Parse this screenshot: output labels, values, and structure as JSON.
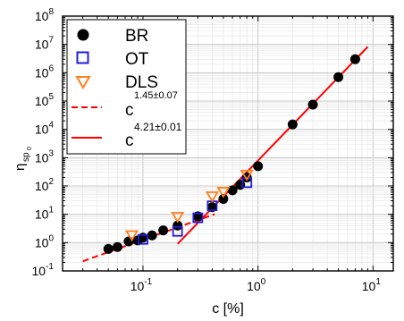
{
  "chart_data": {
    "type": "scatter",
    "x_scale": "log",
    "y_scale": "log",
    "xlim": [
      0.02,
      15
    ],
    "ylim": [
      0.1,
      100000000
    ],
    "xlabel": "c [%]",
    "ylabel_main": "η",
    "ylabel_sub": "sp",
    "ylabel_subsub": "0",
    "grid": true,
    "legend_position": "top-left",
    "x_ticks": [
      {
        "value": 0.1,
        "base": "10",
        "exp": "-1"
      },
      {
        "value": 1,
        "base": "10",
        "exp": "0"
      },
      {
        "value": 10,
        "base": "10",
        "exp": "1"
      }
    ],
    "y_ticks": [
      {
        "value": 0.1,
        "base": "10",
        "exp": "-1"
      },
      {
        "value": 1,
        "base": "10",
        "exp": "0"
      },
      {
        "value": 10,
        "base": "10",
        "exp": "1"
      },
      {
        "value": 100,
        "base": "10",
        "exp": "2"
      },
      {
        "value": 1000,
        "base": "10",
        "exp": "3"
      },
      {
        "value": 10000,
        "base": "10",
        "exp": "4"
      },
      {
        "value": 100000,
        "base": "10",
        "exp": "5"
      },
      {
        "value": 1000000,
        "base": "10",
        "exp": "6"
      },
      {
        "value": 10000000,
        "base": "10",
        "exp": "7"
      },
      {
        "value": 100000000,
        "base": "10",
        "exp": "8"
      }
    ],
    "series": [
      {
        "name": "BR",
        "marker": "filled-circle",
        "color": "#000000",
        "points": [
          [
            0.05,
            0.6
          ],
          [
            0.06,
            0.7
          ],
          [
            0.075,
            1.1
          ],
          [
            0.09,
            1.2
          ],
          [
            0.1,
            1.5
          ],
          [
            0.12,
            1.8
          ],
          [
            0.15,
            2.7
          ],
          [
            0.2,
            4.0
          ],
          [
            0.3,
            8.5
          ],
          [
            0.4,
            18
          ],
          [
            0.5,
            35
          ],
          [
            0.6,
            70
          ],
          [
            0.7,
            110
          ],
          [
            0.8,
            200
          ],
          [
            1.0,
            500
          ],
          [
            2.0,
            15000
          ],
          [
            3.0,
            75000
          ],
          [
            5.0,
            700000
          ],
          [
            7.0,
            3000000
          ]
        ]
      },
      {
        "name": "OT",
        "marker": "open-square",
        "color": "#1f1fdc",
        "points": [
          [
            0.1,
            1.3
          ],
          [
            0.2,
            2.5
          ],
          [
            0.3,
            7.5
          ],
          [
            0.4,
            20
          ],
          [
            0.8,
            130
          ]
        ]
      },
      {
        "name": "DLS",
        "marker": "open-triangle-down",
        "color": "#ff7f1a",
        "points": [
          [
            0.08,
            1.9
          ],
          [
            0.2,
            8.5
          ],
          [
            0.4,
            45
          ],
          [
            0.5,
            65
          ],
          [
            0.8,
            260
          ]
        ]
      }
    ],
    "fits": [
      {
        "label_base": "c",
        "label_exp": "1.45±0.07",
        "exponent": 1.45,
        "style": "dashed",
        "color": "#ff0000",
        "x_range": [
          0.03,
          0.42
        ],
        "y_at_start": 0.22
      },
      {
        "label_base": "c",
        "label_exp": "4.21±0.01",
        "exponent": 4.21,
        "style": "solid",
        "color": "#ff0000",
        "x_range": [
          0.2,
          9.0
        ],
        "y_at_start": 0.9
      }
    ]
  }
}
